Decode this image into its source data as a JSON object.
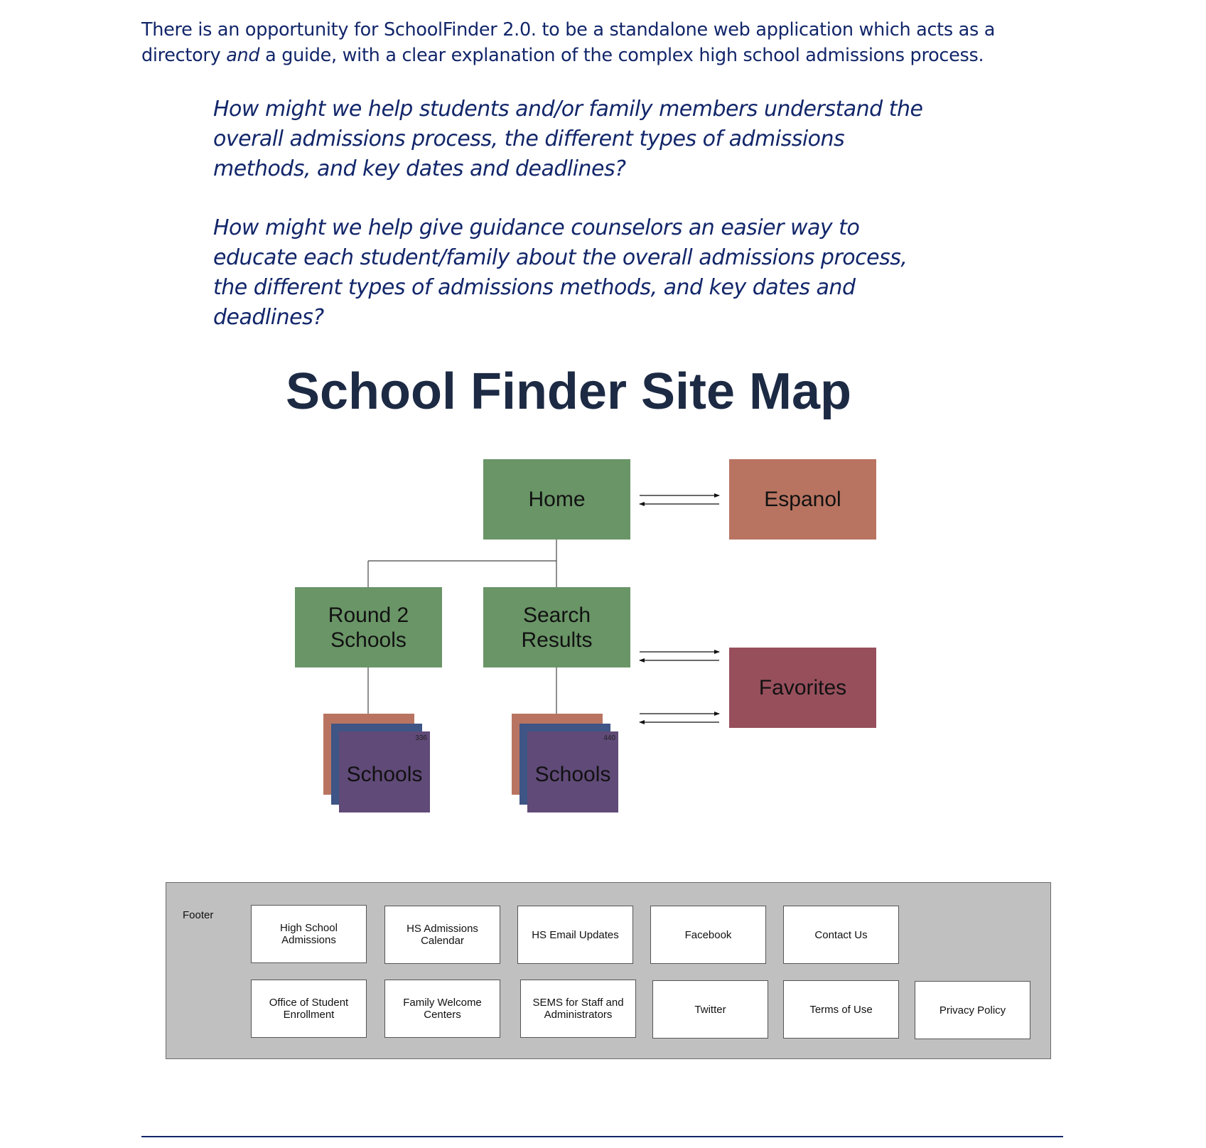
{
  "intro": {
    "part1": "There is an opportunity for SchoolFinder 2.0. to be a standalone web application which acts as a directory ",
    "emphasis": "and",
    "part2": " a guide, with a clear explanation of the complex high school admissions process."
  },
  "hmw_questions": [
    "How might we help students and/or family members understand the overall admissions process, the different types of admissions methods, and key dates and deadlines?",
    "How might we help give guidance counselors an easier way to educate each student/family about the overall admissions process, the different types of admissions methods, and key dates and deadlines?"
  ],
  "site_map": {
    "title": "School Finder Site Map",
    "nodes": {
      "home": "Home",
      "espanol": "Espanol",
      "round2_line1": "Round 2",
      "round2_line2": "Schools",
      "search_line1": "Search",
      "search_line2": "Results",
      "favorites": "Favorites"
    },
    "school_stacks": [
      {
        "label": "Schools",
        "count": "336"
      },
      {
        "label": "Schools",
        "count": "440"
      }
    ],
    "colors": {
      "page_node": "#6a9567",
      "espanol": "#b87461",
      "favorites": "#974f5c",
      "stack_back": "#b87461",
      "stack_mid": "#3e5585",
      "stack_front": "#604a78"
    }
  },
  "footer": {
    "label": "Footer",
    "row1": [
      "High School Admissions",
      "HS Admissions Calendar",
      "HS Email Updates",
      "Facebook",
      "Contact Us"
    ],
    "row2": [
      "Office of Student Enrollment",
      "Family Welcome Centers",
      "SEMS for Staff and Administrators",
      "Twitter",
      "Terms of Use",
      "Privacy Policy"
    ]
  }
}
